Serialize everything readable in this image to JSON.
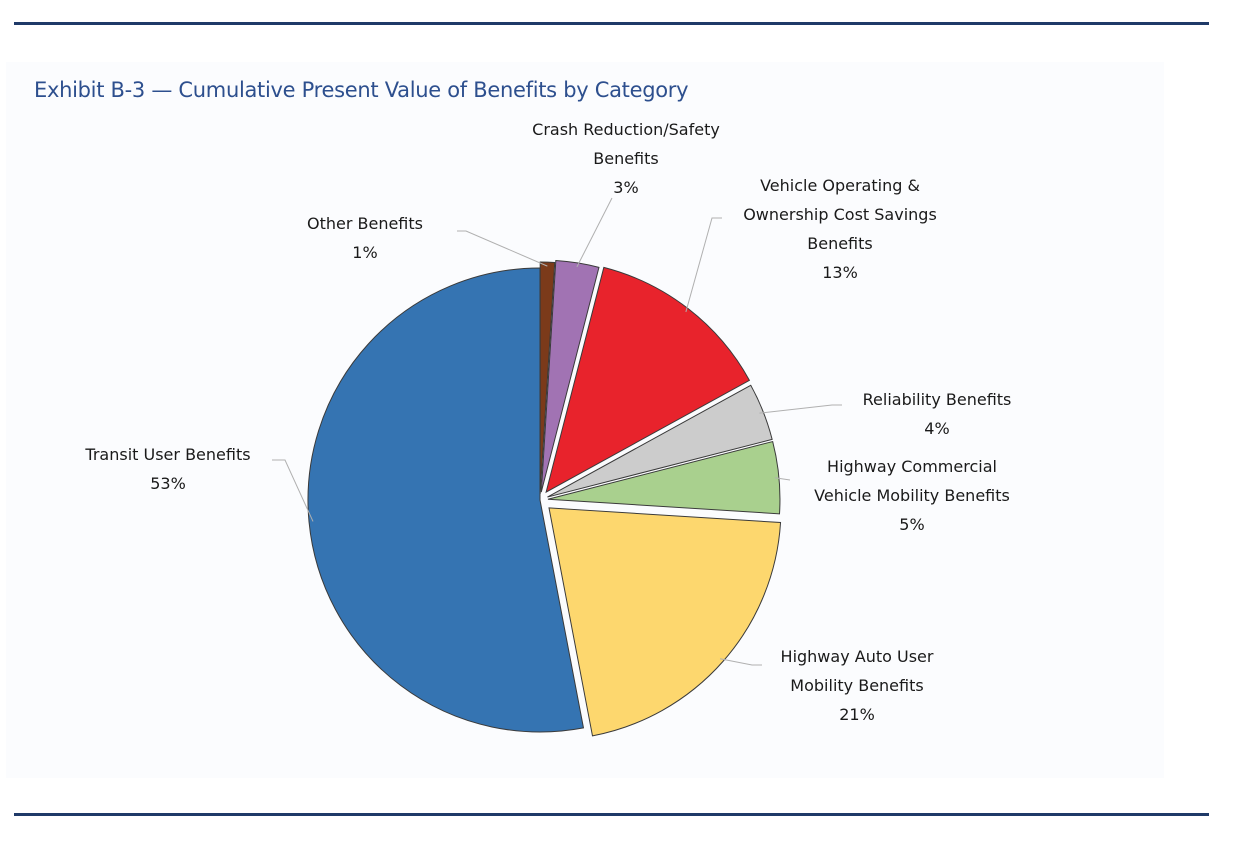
{
  "header": {
    "title": "Exhibit B-3 — Cumulative Present Value of Benefits by Category"
  },
  "chart_data": {
    "type": "pie",
    "title": "Exhibit B-3 — Cumulative Present Value of Benefits by Category",
    "slices": [
      {
        "label": "Other Benefits",
        "value": 1,
        "display": "1%",
        "color": "#7b3a1a",
        "label_lines": [
          "Other Benefits",
          "1%"
        ]
      },
      {
        "label": "Crash Reduction/Safety Benefits",
        "value": 3,
        "display": "3%",
        "color": "#a173b3",
        "label_lines": [
          "Crash Reduction/Safety",
          "Benefits",
          "3%"
        ]
      },
      {
        "label": "Vehicle Operating & Ownership Cost Savings Benefits",
        "value": 13,
        "display": "13%",
        "color": "#e8232c",
        "label_lines": [
          "Vehicle Operating &",
          "Ownership Cost Savings",
          "Benefits",
          "13%"
        ]
      },
      {
        "label": "Reliability Benefits",
        "value": 4,
        "display": "4%",
        "color": "#cccccc",
        "label_lines": [
          "Reliability Benefits",
          "4%"
        ]
      },
      {
        "label": "Highway Commercial Vehicle Mobility Benefits",
        "value": 5,
        "display": "5%",
        "color": "#a9d08e",
        "label_lines": [
          "Highway Commercial",
          "Vehicle Mobility Benefits",
          "5%"
        ]
      },
      {
        "label": "Highway Auto User Mobility Benefits",
        "value": 21,
        "display": "21%",
        "color": "#fdd76e",
        "label_lines": [
          "Highway Auto User",
          "Mobility Benefits",
          "21%"
        ]
      },
      {
        "label": "Transit User Benefits",
        "value": 53,
        "display": "53%",
        "color": "#3574b2",
        "label_lines": [
          "Transit User Benefits",
          "53%"
        ]
      }
    ],
    "legend": "none",
    "labels": "outside with leader lines"
  }
}
